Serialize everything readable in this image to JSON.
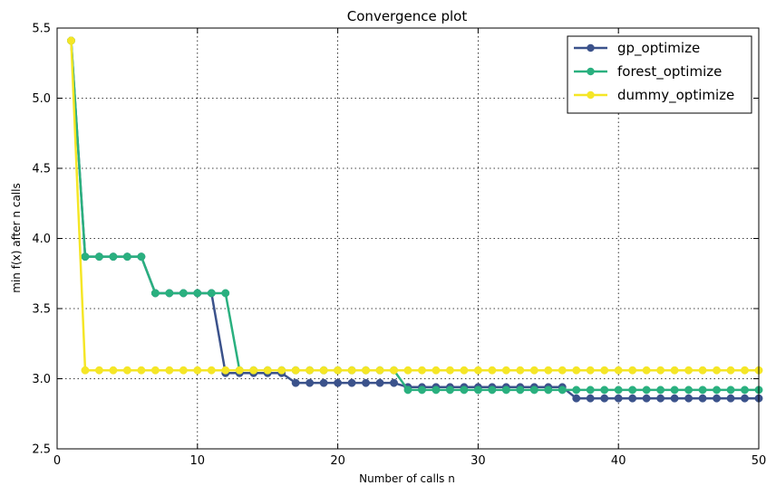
{
  "chart_data": {
    "type": "line",
    "title": "Convergence plot",
    "xlabel": "Number of calls n",
    "ylabel": "min f(x) after n calls",
    "xlim": [
      0,
      50
    ],
    "ylim": [
      2.5,
      5.5
    ],
    "xticks": [
      0,
      10,
      20,
      30,
      40,
      50
    ],
    "yticks": [
      2.5,
      3.0,
      3.5,
      4.0,
      4.5,
      5.0,
      5.5
    ],
    "ytick_labels": [
      "2.5",
      "3.0",
      "3.5",
      "4.0",
      "4.5",
      "5.0",
      "5.5"
    ],
    "grid": true,
    "legend_position": "top-right",
    "x": [
      1,
      2,
      3,
      4,
      5,
      6,
      7,
      8,
      9,
      10,
      11,
      12,
      13,
      14,
      15,
      16,
      17,
      18,
      19,
      20,
      21,
      22,
      23,
      24,
      25,
      26,
      27,
      28,
      29,
      30,
      31,
      32,
      33,
      34,
      35,
      36,
      37,
      38,
      39,
      40,
      41,
      42,
      43,
      44,
      45,
      46,
      47,
      48,
      49,
      50
    ],
    "series": [
      {
        "name": "gp_optimize",
        "color": "#3b528b",
        "values": [
          5.41,
          3.87,
          3.87,
          3.87,
          3.87,
          3.87,
          3.61,
          3.61,
          3.61,
          3.61,
          3.61,
          3.04,
          3.04,
          3.04,
          3.04,
          3.04,
          2.97,
          2.97,
          2.97,
          2.97,
          2.97,
          2.97,
          2.97,
          2.97,
          2.94,
          2.94,
          2.94,
          2.94,
          2.94,
          2.94,
          2.94,
          2.94,
          2.94,
          2.94,
          2.94,
          2.94,
          2.86,
          2.86,
          2.86,
          2.86,
          2.86,
          2.86,
          2.86,
          2.86,
          2.86,
          2.86,
          2.86,
          2.86,
          2.86,
          2.86
        ]
      },
      {
        "name": "forest_optimize",
        "color": "#2ab07f",
        "values": [
          5.41,
          3.87,
          3.87,
          3.87,
          3.87,
          3.87,
          3.61,
          3.61,
          3.61,
          3.61,
          3.61,
          3.61,
          3.06,
          3.06,
          3.06,
          3.06,
          3.06,
          3.06,
          3.06,
          3.06,
          3.06,
          3.06,
          3.06,
          3.06,
          2.92,
          2.92,
          2.92,
          2.92,
          2.92,
          2.92,
          2.92,
          2.92,
          2.92,
          2.92,
          2.92,
          2.92,
          2.92,
          2.92,
          2.92,
          2.92,
          2.92,
          2.92,
          2.92,
          2.92,
          2.92,
          2.92,
          2.92,
          2.92,
          2.92,
          2.92
        ]
      },
      {
        "name": "dummy_optimize",
        "color": "#f5e626",
        "values": [
          5.41,
          3.06,
          3.06,
          3.06,
          3.06,
          3.06,
          3.06,
          3.06,
          3.06,
          3.06,
          3.06,
          3.06,
          3.06,
          3.06,
          3.06,
          3.06,
          3.06,
          3.06,
          3.06,
          3.06,
          3.06,
          3.06,
          3.06,
          3.06,
          3.06,
          3.06,
          3.06,
          3.06,
          3.06,
          3.06,
          3.06,
          3.06,
          3.06,
          3.06,
          3.06,
          3.06,
          3.06,
          3.06,
          3.06,
          3.06,
          3.06,
          3.06,
          3.06,
          3.06,
          3.06,
          3.06,
          3.06,
          3.06,
          3.06,
          3.06
        ]
      }
    ]
  }
}
